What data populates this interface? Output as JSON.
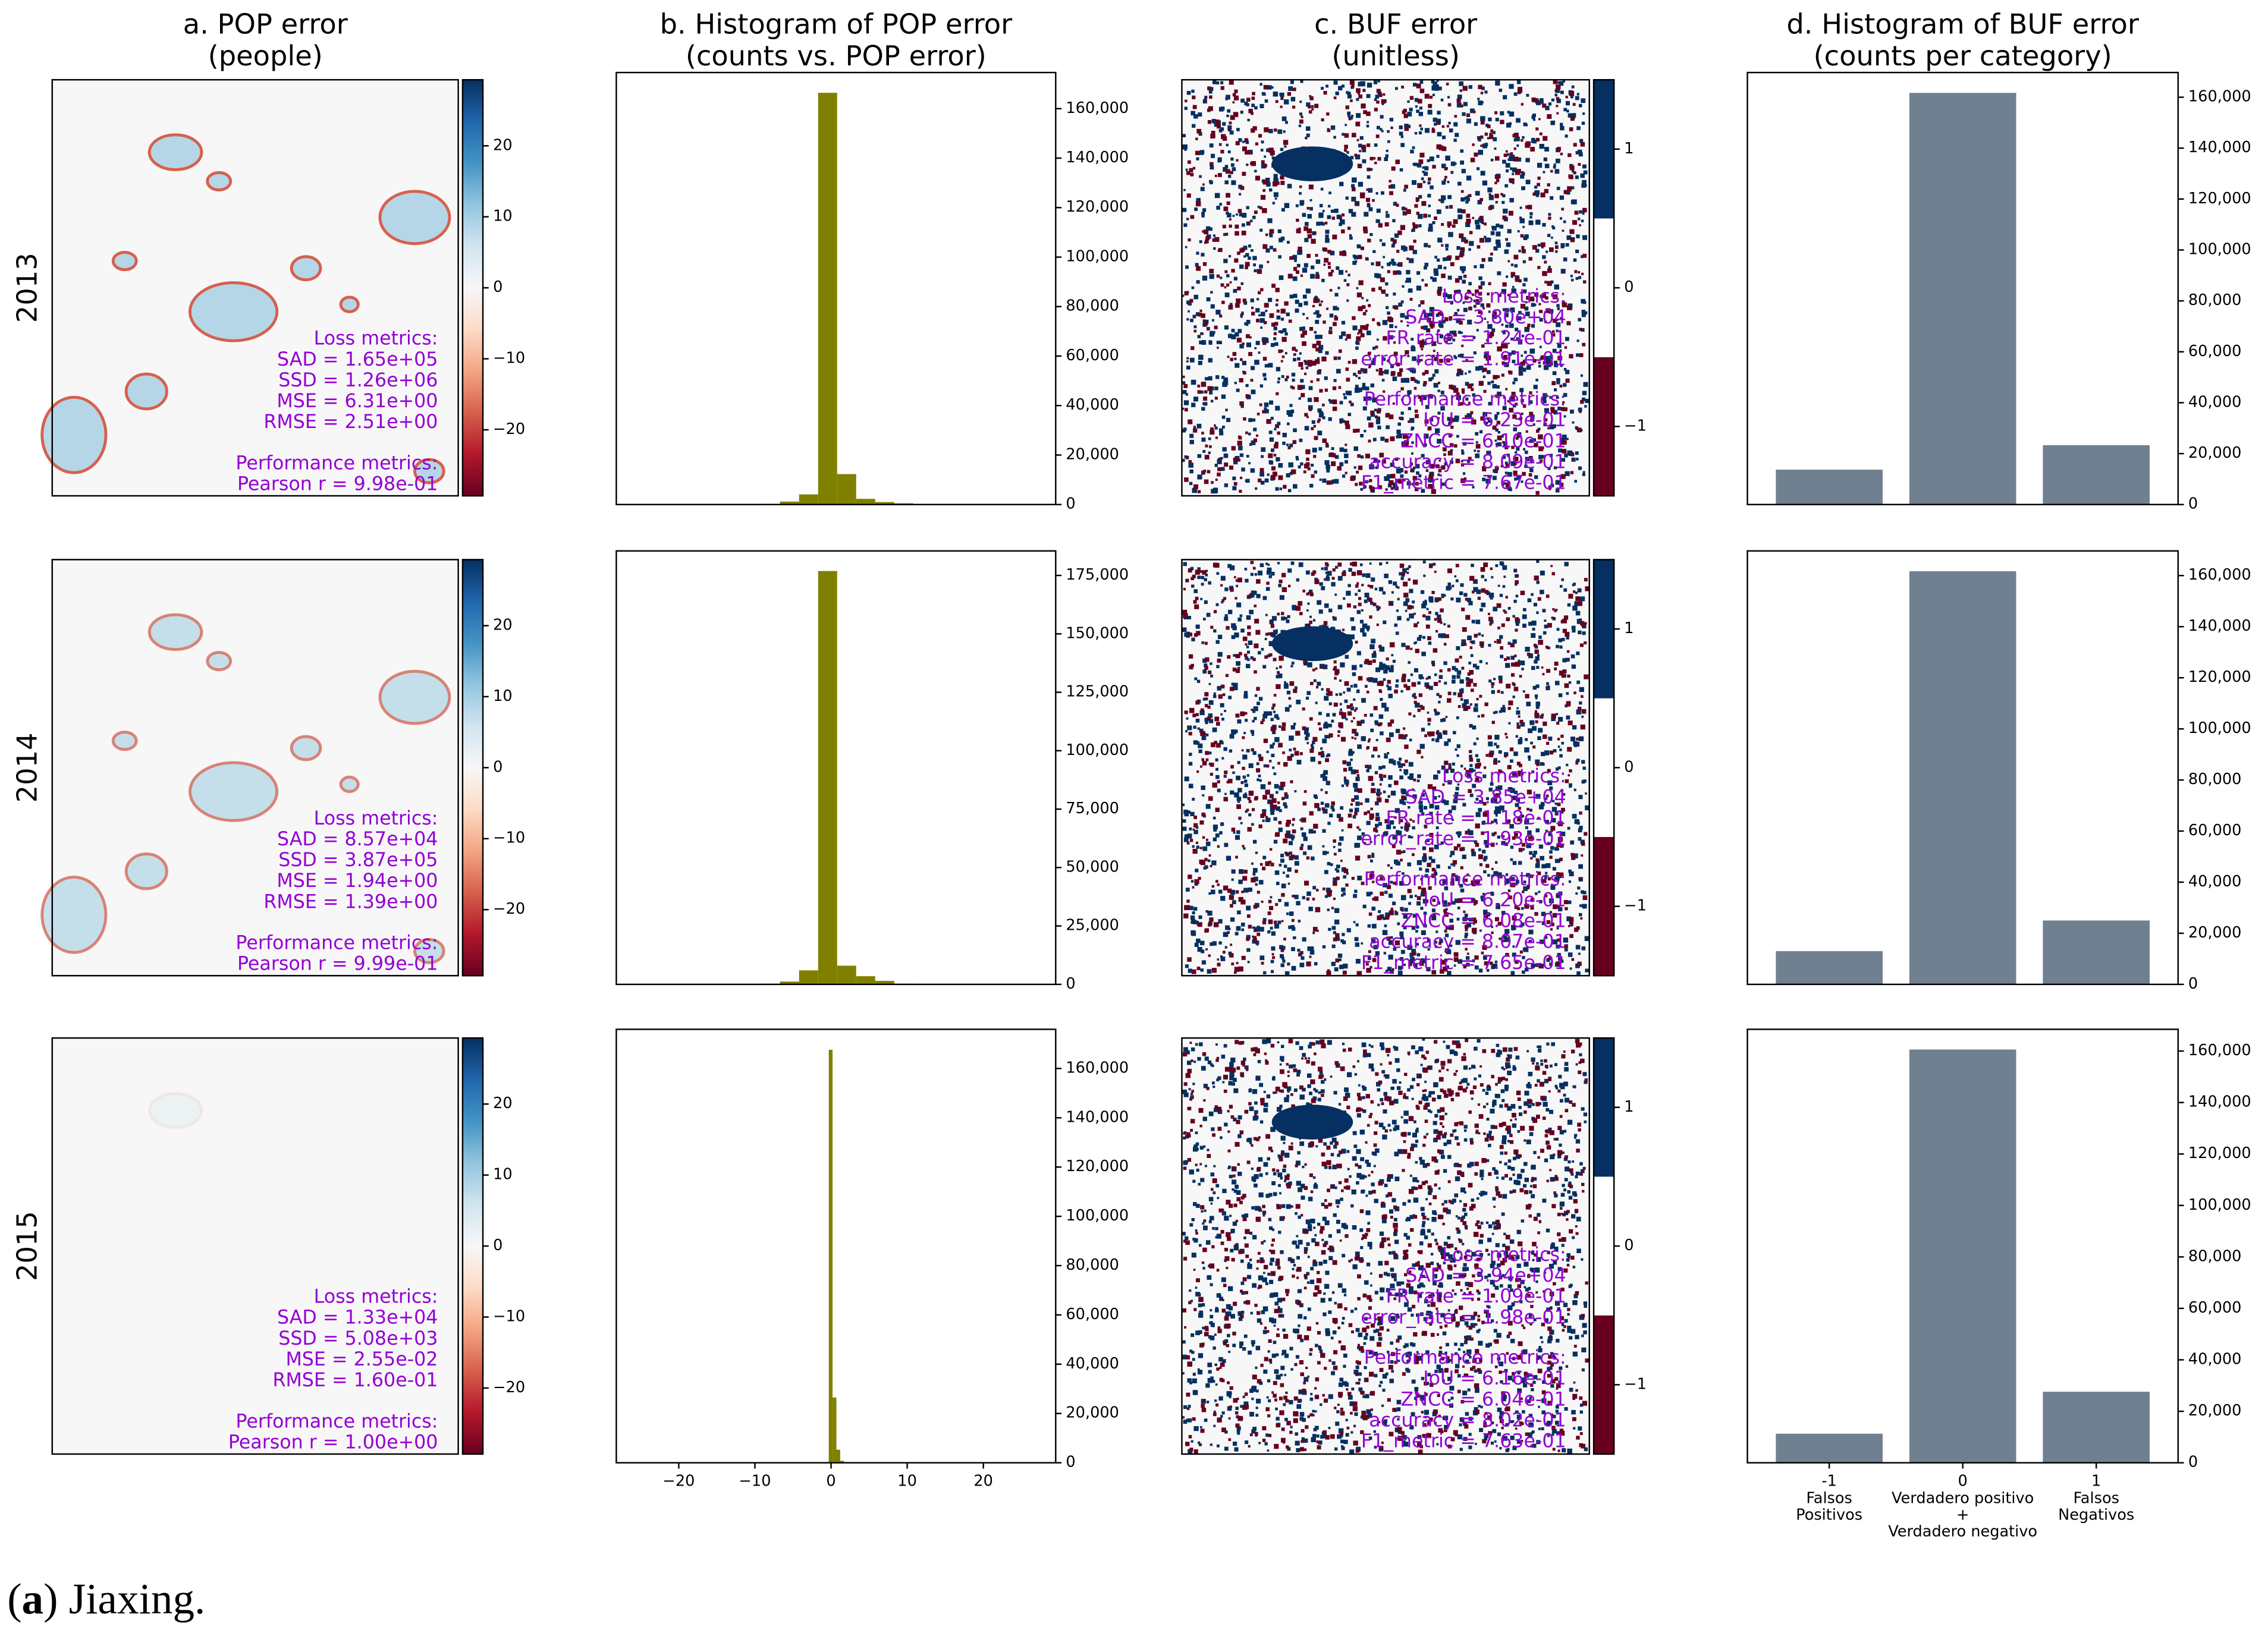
{
  "caption_parts": [
    "(",
    "a",
    ") Jiaxing."
  ],
  "chart_data": [
    {
      "type": "heatmap",
      "title": [
        "a. POP error",
        "(people)"
      ],
      "row_label": "2013",
      "colorbar": {
        "clim": [
          -29.3,
          29.3
        ],
        "cticks": [
          {
            "value": -20,
            "label": "−20"
          },
          {
            "value": -10,
            "label": "−10"
          },
          0,
          10,
          20
        ],
        "cmap": "RdBu"
      },
      "annotation_color": "#9400d3",
      "annotation_groups": [
        [
          "Loss metrics:",
          "SAD = 1.65e+05",
          "SSD = 1.26e+06",
          "MSE = 6.31e+00",
          "RMSE = 2.51e+00"
        ],
        [
          "Performance metrics:",
          "Pearson r = 9.98e-01"
        ]
      ]
    },
    {
      "type": "histogram",
      "title": [
        "b. Histogram of POP error",
        "(counts vs. POP error)"
      ],
      "color": "#808000",
      "xlim": [
        -28.2,
        29.5
      ],
      "ylim": [
        0,
        174600
      ],
      "bins": [
        -26.7,
        -24.2,
        -21.7,
        -19.2,
        -16.7,
        -14.2,
        -11.7,
        -9.2,
        -6.7,
        -4.2,
        -1.7,
        0.8,
        3.3,
        5.8,
        8.3,
        10.8,
        13.3,
        15.8,
        18.3,
        20.8,
        23.3,
        25.8,
        28.3
      ],
      "counts": [
        0,
        0,
        0,
        0,
        0,
        0,
        0,
        300,
        1200,
        4100,
        166400,
        12300,
        2300,
        1000,
        500,
        0,
        0,
        0,
        0,
        0,
        0,
        0
      ],
      "yticks": [
        0,
        {
          "value": 20000,
          "label": "20,000"
        },
        {
          "value": 40000,
          "label": "40,000"
        },
        {
          "value": 60000,
          "label": "60,000"
        },
        {
          "value": 80000,
          "label": "80,000"
        },
        {
          "value": 100000,
          "label": "100,000"
        },
        {
          "value": 120000,
          "label": "120,000"
        },
        {
          "value": 140000,
          "label": "140,000"
        },
        {
          "value": 160000,
          "label": "160,000"
        }
      ]
    },
    {
      "type": "heatmap",
      "title": [
        "c. BUF error",
        "(unitless)"
      ],
      "colorbar": {
        "clim": [
          -1.5,
          1.5
        ],
        "cticks": [
          {
            "value": -1,
            "label": "−1"
          },
          0,
          1
        ],
        "colors": [
          "#67001f",
          "#ffffff",
          "#053061"
        ]
      },
      "annotation_color": "#9400d3",
      "annotation_groups": [
        [
          "Loss metrics:",
          "SAD = 3.80e+04",
          "FR rate = 1.24e-01",
          "error_rate = 1.91e-01"
        ],
        [
          "Performance metrics:",
          "IoU = 6.23e-01",
          "ZNCC = 6.10e-01",
          "accuracy = 8.09e-01",
          "F1_metric = 7.67e-01"
        ]
      ]
    },
    {
      "type": "bar",
      "title": [
        "d. Histogram of BUF error",
        "(counts per category)"
      ],
      "color": "#708090",
      "categories": [
        null,
        null,
        null
      ],
      "values": [
        13700,
        161700,
        23300
      ],
      "ylim": [
        0,
        169700
      ],
      "yticks": [
        0,
        {
          "value": 20000,
          "label": "20,000"
        },
        {
          "value": 40000,
          "label": "40,000"
        },
        {
          "value": 60000,
          "label": "60,000"
        },
        {
          "value": 80000,
          "label": "80,000"
        },
        {
          "value": 100000,
          "label": "100,000"
        },
        {
          "value": 120000,
          "label": "120,000"
        },
        {
          "value": 140000,
          "label": "140,000"
        },
        {
          "value": 160000,
          "label": "160,000"
        }
      ]
    },
    {
      "type": "heatmap",
      "row_label": "2014",
      "colorbar": {
        "clim": [
          -29.3,
          29.3
        ],
        "cticks": [
          {
            "value": -20,
            "label": "−20"
          },
          {
            "value": -10,
            "label": "−10"
          },
          0,
          10,
          20
        ],
        "cmap": "RdBu"
      },
      "annotation_color": "#9400d3",
      "annotation_groups": [
        [
          "Loss metrics:",
          "SAD = 8.57e+04",
          "SSD = 3.87e+05",
          "MSE = 1.94e+00",
          "RMSE = 1.39e+00"
        ],
        [
          "Performance metrics:",
          "Pearson r = 9.99e-01"
        ]
      ]
    },
    {
      "type": "histogram",
      "color": "#808000",
      "xlim": [
        -28.2,
        29.5
      ],
      "ylim": [
        0,
        185500
      ],
      "bins": [
        -26.7,
        -24.2,
        -21.7,
        -19.2,
        -16.7,
        -14.2,
        -11.7,
        -9.2,
        -6.7,
        -4.2,
        -1.7,
        0.8,
        3.3,
        5.8,
        8.3,
        10.8,
        13.3,
        15.8,
        18.3,
        20.8,
        23.3,
        25.8,
        28.3
      ],
      "counts": [
        0,
        0,
        0,
        0,
        0,
        0,
        0,
        300,
        1200,
        6000,
        176900,
        8000,
        3500,
        1500,
        300,
        0,
        0,
        0,
        0,
        0,
        0,
        0
      ],
      "yticks": [
        0,
        {
          "value": 25000,
          "label": "25,000"
        },
        {
          "value": 50000,
          "label": "50,000"
        },
        {
          "value": 75000,
          "label": "75,000"
        },
        {
          "value": 100000,
          "label": "100,000"
        },
        {
          "value": 125000,
          "label": "125,000"
        },
        {
          "value": 150000,
          "label": "150,000"
        },
        {
          "value": 175000,
          "label": "175,000"
        }
      ]
    },
    {
      "type": "heatmap",
      "colorbar": {
        "clim": [
          -1.5,
          1.5
        ],
        "cticks": [
          {
            "value": -1,
            "label": "−1"
          },
          0,
          1
        ],
        "colors": [
          "#67001f",
          "#ffffff",
          "#053061"
        ]
      },
      "annotation_color": "#9400d3",
      "annotation_groups": [
        [
          "Loss metrics:",
          "SAD = 3.85e+04",
          "FR rate = 1.18e-01",
          "error_rate = 1.93e-01"
        ],
        [
          "Performance metrics:",
          "IoU = 6.20e-01",
          "ZNCC = 6.08e-01",
          "accuracy = 8.07e-01",
          "F1_metric = 7.65e-01"
        ]
      ]
    },
    {
      "type": "bar",
      "color": "#708090",
      "categories": [
        null,
        null,
        null
      ],
      "values": [
        13000,
        161700,
        25000
      ],
      "ylim": [
        0,
        169650
      ],
      "yticks": [
        0,
        {
          "value": 20000,
          "label": "20,000"
        },
        {
          "value": 40000,
          "label": "40,000"
        },
        {
          "value": 60000,
          "label": "60,000"
        },
        {
          "value": 80000,
          "label": "80,000"
        },
        {
          "value": 100000,
          "label": "100,000"
        },
        {
          "value": 120000,
          "label": "120,000"
        },
        {
          "value": 140000,
          "label": "140,000"
        },
        {
          "value": 160000,
          "label": "160,000"
        }
      ]
    },
    {
      "type": "heatmap",
      "row_label": "2015",
      "colorbar": {
        "clim": [
          -29.3,
          29.3
        ],
        "cticks": [
          {
            "value": -20,
            "label": "−20"
          },
          {
            "value": -10,
            "label": "−10"
          },
          0,
          10,
          20
        ],
        "cmap": "RdBu"
      },
      "annotation_color": "#9400d3",
      "annotation_groups": [
        [
          "Loss metrics:",
          "SAD = 1.33e+04",
          "SSD = 5.08e+03",
          "MSE = 2.55e-02",
          "RMSE = 1.60e-01"
        ],
        [
          "Performance metrics:",
          "Pearson r = 1.00e+00"
        ]
      ]
    },
    {
      "type": "histogram",
      "color": "#808000",
      "xlim": [
        -28.2,
        29.5
      ],
      "ylim": [
        0,
        175900
      ],
      "bins": [
        -0.8,
        -0.3,
        0.2,
        0.7,
        1.2,
        1.7
      ],
      "counts": [
        300,
        167600,
        26500,
        5300,
        800
      ],
      "xticks": [
        {
          "value": -20,
          "label": "−20"
        },
        {
          "value": -10,
          "label": "−10"
        },
        0,
        10,
        20
      ],
      "yticks": [
        0,
        {
          "value": 20000,
          "label": "20,000"
        },
        {
          "value": 40000,
          "label": "40,000"
        },
        {
          "value": 60000,
          "label": "60,000"
        },
        {
          "value": 80000,
          "label": "80,000"
        },
        {
          "value": 100000,
          "label": "100,000"
        },
        {
          "value": 120000,
          "label": "120,000"
        },
        {
          "value": 140000,
          "label": "140,000"
        },
        {
          "value": 160000,
          "label": "160,000"
        }
      ]
    },
    {
      "type": "heatmap",
      "colorbar": {
        "clim": [
          -1.5,
          1.5
        ],
        "cticks": [
          {
            "value": -1,
            "label": "−1"
          },
          0,
          1
        ],
        "colors": [
          "#67001f",
          "#ffffff",
          "#053061"
        ]
      },
      "annotation_color": "#9400d3",
      "annotation_groups": [
        [
          "Loss metrics:",
          "SAD = 3.94e+04",
          "FR rate = 1.09e-01",
          "error_rate = 1.98e-01"
        ],
        [
          "Performance metrics:",
          "IoU = 6.16e-01",
          "ZNCC = 6.04e-01",
          "accuracy = 8.02e-01",
          "F1_metric = 7.63e-01"
        ]
      ]
    },
    {
      "type": "bar",
      "color": "#708090",
      "categories": [
        "-1",
        "0",
        "1"
      ],
      "category_descriptions": [
        [
          "Falsos",
          "Positivos"
        ],
        [
          "Verdadero positivo",
          "+",
          "Verdadero negativo"
        ],
        [
          "Falsos",
          "Negativos"
        ]
      ],
      "values": [
        11300,
        160600,
        27600
      ],
      "ylim": [
        0,
        168450
      ],
      "yticks": [
        0,
        {
          "value": 20000,
          "label": "20,000"
        },
        {
          "value": 40000,
          "label": "40,000"
        },
        {
          "value": 60000,
          "label": "60,000"
        },
        {
          "value": 80000,
          "label": "80,000"
        },
        {
          "value": 100000,
          "label": "100,000"
        },
        {
          "value": 120000,
          "label": "120,000"
        },
        {
          "value": 140000,
          "label": "140,000"
        },
        {
          "value": 160000,
          "label": "160,000"
        }
      ]
    }
  ]
}
